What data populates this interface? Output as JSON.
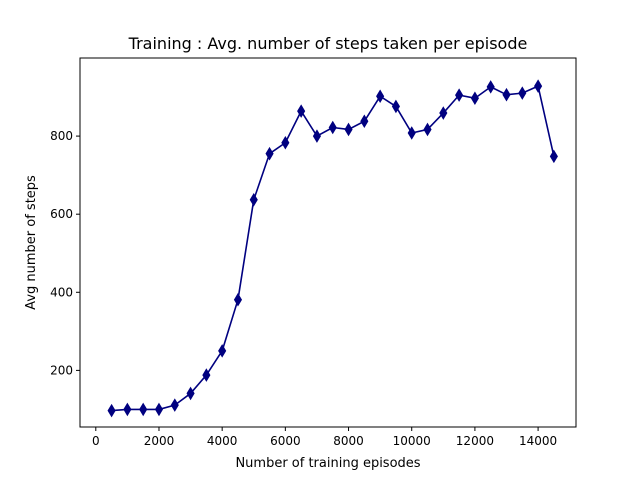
{
  "chart_data": {
    "type": "line",
    "title": "Training : Avg. number of steps taken per episode",
    "xlabel": "Number of training episodes",
    "ylabel": "Avg number of steps",
    "xlim": [
      -500,
      15200
    ],
    "ylim": [
      55,
      1000
    ],
    "xticks": [
      0,
      2000,
      4000,
      6000,
      8000,
      10000,
      12000,
      14000
    ],
    "xtick_labels": [
      "0",
      "2000",
      "4000",
      "6000",
      "8000",
      "10000",
      "12000",
      "14000"
    ],
    "yticks": [
      200,
      400,
      600,
      800
    ],
    "ytick_labels": [
      "200",
      "400",
      "600",
      "800"
    ],
    "grid": false,
    "series": [
      {
        "color": "#000080",
        "marker": "thin-diamond",
        "x": [
          500,
          1000,
          1500,
          2000,
          2500,
          3000,
          3500,
          4000,
          4500,
          5000,
          5500,
          6000,
          6500,
          7000,
          7500,
          8000,
          8500,
          9000,
          9500,
          10000,
          10500,
          11000,
          11500,
          12000,
          12500,
          13000,
          13500,
          14000,
          14500
        ],
        "values": [
          97,
          100,
          100,
          100,
          111,
          141,
          188,
          250,
          381,
          637,
          755,
          783,
          864,
          800,
          822,
          817,
          838,
          902,
          876,
          808,
          817,
          859,
          905,
          897,
          926,
          906,
          910,
          928,
          748
        ]
      }
    ]
  }
}
